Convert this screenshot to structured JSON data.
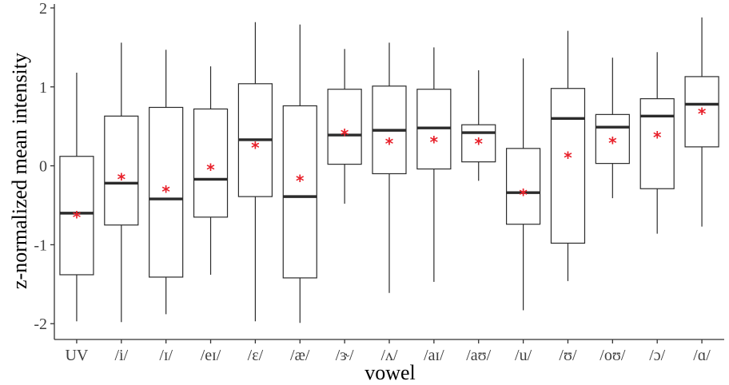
{
  "chart_data": {
    "type": "box",
    "xlabel": "vowel",
    "ylabel": "z-normalized mean intensity",
    "ylim": [
      -2.2,
      2.05
    ],
    "y_ticks": [
      -2,
      -1,
      0,
      1,
      2
    ],
    "grid": false,
    "legend": "none",
    "colors": {
      "box_stroke": "#2b2b2b",
      "mean_marker": "#e8202a",
      "axis": "#333333"
    },
    "mean_marker_glyph": "*",
    "categories": [
      "UV",
      "/i/",
      "/ɪ/",
      "/eɪ/",
      "/ɛ/",
      "/æ/",
      "/ɝ/",
      "/ʌ/",
      "/aɪ/",
      "/aʊ/",
      "/u/",
      "/ʊ/",
      "/oʊ/",
      "/ɔ/",
      "/ɑ/"
    ],
    "boxes": [
      {
        "min": -1.97,
        "q1": -1.38,
        "median": -0.6,
        "q3": 0.12,
        "max": 1.18,
        "mean": -0.63
      },
      {
        "min": -1.98,
        "q1": -0.75,
        "median": -0.22,
        "q3": 0.63,
        "max": 1.56,
        "mean": -0.15
      },
      {
        "min": -1.88,
        "q1": -1.41,
        "median": -0.42,
        "q3": 0.74,
        "max": 1.47,
        "mean": -0.31
      },
      {
        "min": -1.38,
        "q1": -0.65,
        "median": -0.17,
        "q3": 0.72,
        "max": 1.26,
        "mean": -0.03
      },
      {
        "min": -1.97,
        "q1": -0.39,
        "median": 0.33,
        "q3": 1.04,
        "max": 1.82,
        "mean": 0.25
      },
      {
        "min": -1.99,
        "q1": -1.42,
        "median": -0.39,
        "q3": 0.76,
        "max": 1.79,
        "mean": -0.17
      },
      {
        "min": -0.48,
        "q1": 0.02,
        "median": 0.39,
        "q3": 0.97,
        "max": 1.48,
        "mean": 0.41
      },
      {
        "min": -1.61,
        "q1": -0.1,
        "median": 0.45,
        "q3": 1.01,
        "max": 1.56,
        "mean": 0.3
      },
      {
        "min": -1.47,
        "q1": -0.04,
        "median": 0.48,
        "q3": 0.97,
        "max": 1.5,
        "mean": 0.32
      },
      {
        "min": -0.19,
        "q1": 0.05,
        "median": 0.42,
        "q3": 0.52,
        "max": 1.21,
        "mean": 0.3
      },
      {
        "min": -1.83,
        "q1": -0.74,
        "median": -0.34,
        "q3": 0.22,
        "max": 1.36,
        "mean": -0.35
      },
      {
        "min": -1.46,
        "q1": -0.98,
        "median": 0.6,
        "q3": 0.98,
        "max": 1.71,
        "mean": 0.12
      },
      {
        "min": -0.41,
        "q1": 0.03,
        "median": 0.49,
        "q3": 0.65,
        "max": 1.37,
        "mean": 0.31
      },
      {
        "min": -0.86,
        "q1": -0.29,
        "median": 0.63,
        "q3": 0.85,
        "max": 1.44,
        "mean": 0.38
      },
      {
        "min": -0.77,
        "q1": 0.24,
        "median": 0.78,
        "q3": 1.13,
        "max": 1.88,
        "mean": 0.68
      }
    ]
  }
}
